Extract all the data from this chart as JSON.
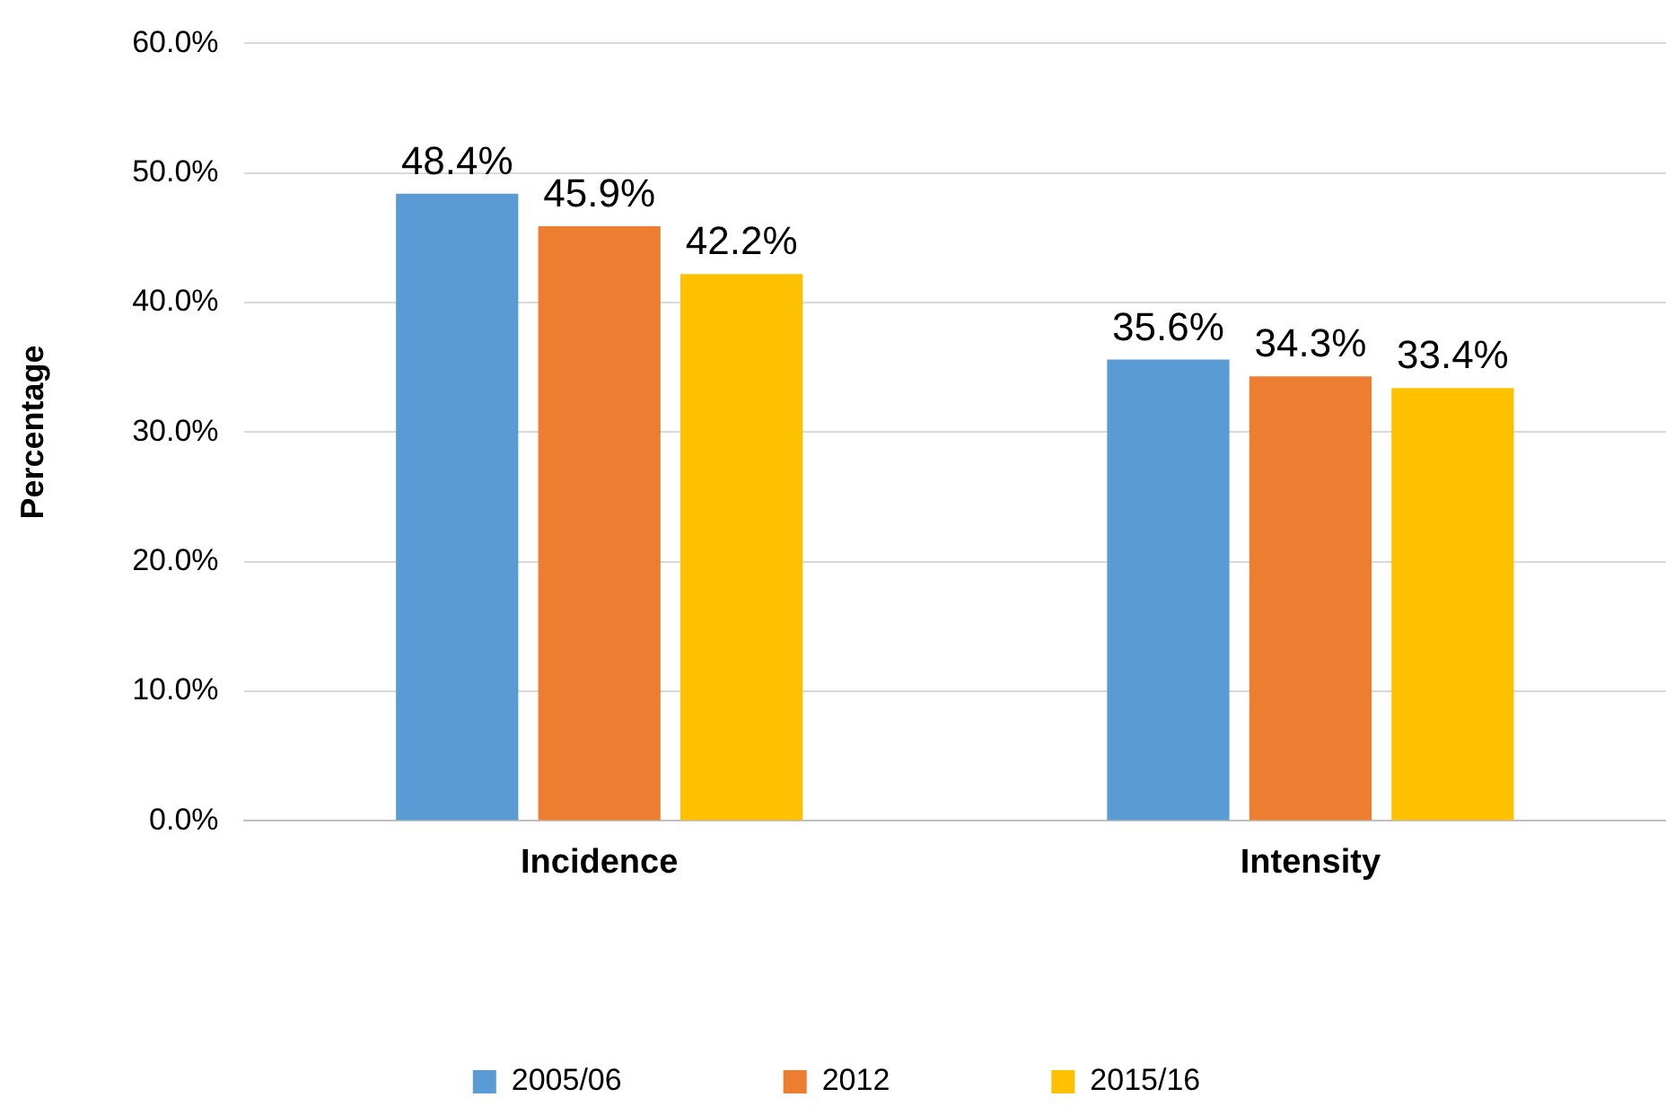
{
  "chart_data": {
    "type": "bar",
    "ylabel": "Percentage",
    "categories": [
      "Incidence",
      "Intensity"
    ],
    "series": [
      {
        "name": "2005/06",
        "color": "#5b9bd5",
        "values": [
          48.4,
          35.6
        ],
        "value_labels": [
          "48.4%",
          "35.6%"
        ]
      },
      {
        "name": "2012",
        "color": "#ed7d31",
        "values": [
          45.9,
          34.3
        ],
        "value_labels": [
          "45.9%",
          "34.3%"
        ]
      },
      {
        "name": "2015/16",
        "color": "#ffc000",
        "values": [
          42.2,
          33.4
        ],
        "value_labels": [
          "42.2%",
          "33.4%"
        ]
      }
    ],
    "ylim": [
      0,
      60
    ],
    "yticks": [
      {
        "value": 0,
        "label": "0.0%"
      },
      {
        "value": 10,
        "label": "10.0%"
      },
      {
        "value": 20,
        "label": "20.0%"
      },
      {
        "value": 30,
        "label": "30.0%"
      },
      {
        "value": 40,
        "label": "40.0%"
      },
      {
        "value": 50,
        "label": "50.0%"
      },
      {
        "value": 60,
        "label": "60.0%"
      }
    ],
    "grid": "y",
    "legend": "bottom"
  }
}
